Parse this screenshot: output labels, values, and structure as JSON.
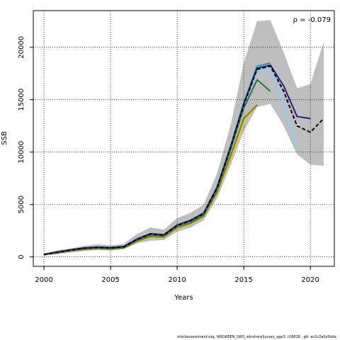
{
  "chart_data": {
    "type": "line",
    "xlabel": "Years",
    "ylabel": "SSB",
    "annotation": "ρ = -0.079",
    "xlim": [
      1999.2,
      2021.8
    ],
    "ylim": [
      -900,
      23500
    ],
    "x_ticks": [
      2000,
      2005,
      2010,
      2015,
      2020
    ],
    "y_ticks": [
      0,
      5000,
      10000,
      15000,
      20000
    ],
    "grid": true,
    "colors": {
      "band": "#bebebe",
      "main": "#000000",
      "grid": "#000000"
    },
    "band": {
      "x": [
        2000,
        2001,
        2002,
        2003,
        2004,
        2005,
        2006,
        2007,
        2008,
        2009,
        2010,
        2011,
        2012,
        2013,
        2014,
        2015,
        2016,
        2017,
        2018,
        2019,
        2020,
        2021
      ],
      "upper": [
        300,
        650,
        800,
        1050,
        1200,
        1100,
        1250,
        2200,
        2800,
        2600,
        3700,
        4200,
        5000,
        8000,
        12500,
        18500,
        22500,
        22600,
        19500,
        16100,
        16500,
        20500
      ],
      "lower": [
        120,
        250,
        400,
        550,
        650,
        600,
        750,
        1300,
        1550,
        1600,
        2400,
        2800,
        3500,
        5600,
        8700,
        12000,
        14300,
        14600,
        12500,
        9800,
        8800,
        8700
      ]
    },
    "series": [
      {
        "color": "#e8c33a",
        "dashed": false,
        "x": [
          2000,
          2001,
          2002,
          2003,
          2004,
          2005,
          2006,
          2007,
          2008,
          2009,
          2010,
          2011,
          2012,
          2013,
          2014,
          2015,
          2016
        ],
        "values": [
          200,
          380,
          560,
          700,
          780,
          730,
          830,
          1470,
          1900,
          1850,
          2750,
          3150,
          3850,
          6100,
          9300,
          12800,
          14600
        ]
      },
      {
        "color": "#808000",
        "dashed": false,
        "x": [
          2000,
          2001,
          2002,
          2003,
          2004,
          2005,
          2006,
          2007,
          2008,
          2009,
          2010,
          2011,
          2012,
          2013,
          2014,
          2015,
          2016
        ],
        "values": [
          210,
          400,
          580,
          720,
          800,
          750,
          850,
          1500,
          1950,
          1900,
          2800,
          3200,
          3900,
          6200,
          9600,
          13200,
          14500
        ]
      },
      {
        "color": "#1b7a3a",
        "dashed": false,
        "x": [
          2000,
          2001,
          2002,
          2003,
          2004,
          2005,
          2006,
          2007,
          2008,
          2009,
          2010,
          2011,
          2012,
          2013,
          2014,
          2015,
          2016,
          2017
        ],
        "values": [
          220,
          420,
          620,
          780,
          860,
          810,
          920,
          1620,
          2100,
          2030,
          2950,
          3350,
          4050,
          6400,
          10200,
          14200,
          16900,
          15800
        ]
      },
      {
        "color": "#87cefa",
        "dashed": false,
        "x": [
          2000,
          2001,
          2002,
          2003,
          2004,
          2005,
          2006,
          2007,
          2008,
          2009,
          2010,
          2011,
          2012,
          2013,
          2014,
          2015,
          2016,
          2017,
          2018,
          2019
        ],
        "values": [
          240,
          460,
          660,
          840,
          920,
          870,
          980,
          1700,
          2200,
          2100,
          3000,
          3450,
          4150,
          6600,
          10400,
          14500,
          17700,
          17800,
          14500,
          10300
        ]
      },
      {
        "color": "#1b9bb0",
        "dashed": false,
        "x": [
          2000,
          2001,
          2002,
          2003,
          2004,
          2005,
          2006,
          2007,
          2008,
          2009,
          2010,
          2011,
          2012,
          2013,
          2014,
          2015,
          2016,
          2017
        ],
        "values": [
          250,
          470,
          680,
          860,
          940,
          890,
          1000,
          1720,
          2220,
          2120,
          3050,
          3500,
          4200,
          6700,
          10500,
          14700,
          18200,
          18500
        ]
      },
      {
        "color": "#2a1a8c",
        "dashed": false,
        "x": [
          2000,
          2001,
          2002,
          2003,
          2004,
          2005,
          2006,
          2007,
          2008,
          2009,
          2010,
          2011,
          2012,
          2013,
          2014,
          2015,
          2016,
          2017,
          2018,
          2019,
          2020
        ],
        "values": [
          245,
          465,
          670,
          850,
          930,
          880,
          990,
          1710,
          2210,
          2110,
          3030,
          3480,
          4180,
          6650,
          10450,
          14600,
          18000,
          18300,
          16300,
          13400,
          13200
        ]
      },
      {
        "color": "#000000",
        "dashed": true,
        "x": [
          2000,
          2001,
          2002,
          2003,
          2004,
          2005,
          2006,
          2007,
          2008,
          2009,
          2010,
          2011,
          2012,
          2013,
          2014,
          2015,
          2016,
          2017,
          2018,
          2019,
          2020,
          2021
        ],
        "values": [
          230,
          450,
          650,
          830,
          910,
          860,
          970,
          1680,
          2180,
          2080,
          3000,
          3450,
          4150,
          6600,
          10400,
          14500,
          17900,
          18200,
          15800,
          12500,
          11900,
          13200
        ]
      }
    ]
  },
  "footer": {
    "text": "stockassessment.org, WKGREEN_GRO_wInshoreSurvey_age3, r16818 , git: ec2c2a0c6dde"
  }
}
